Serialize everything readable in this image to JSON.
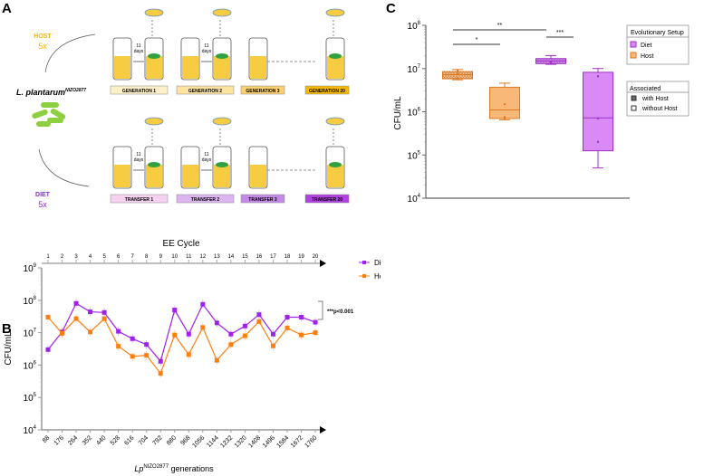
{
  "panelA": {
    "label": "A",
    "strain": "L. plantarum",
    "strain_sup": "NIZO2877",
    "host_label": "HOST",
    "host_count": "5x",
    "diet_label": "DIET",
    "diet_count": "5x",
    "days": [
      "11",
      "days"
    ],
    "host_steps": [
      "GENERATION 1",
      "GENERATION 2",
      "GENERATION 3",
      "GENERATION 20"
    ],
    "diet_steps": [
      "TRANSFER 1",
      "TRANSFER 2",
      "TRANSFER 3",
      "TRANSFER 20"
    ],
    "host_step_colors": [
      "#fdf0c8",
      "#fde3a0",
      "#fbd070",
      "#f5b800"
    ],
    "diet_step_colors": [
      "#f6d2f0",
      "#dcb5f0",
      "#c58ae8",
      "#b040e0"
    ]
  },
  "chart_data": [
    {
      "panel": "B",
      "type": "line",
      "title": "EE Cycle",
      "xlabel": "Lp",
      "xlabel_sup": "NIZO2877",
      "xlabel_suffix": "generations",
      "ylabel": "CFU/mL",
      "yscale": "log",
      "ylim": [
        10000,
        1000000000
      ],
      "yticks": [
        "10",
        "10",
        "10",
        "10",
        "10",
        "10"
      ],
      "ytick_exp": [
        "9",
        "8",
        "7",
        "6",
        "5",
        "4"
      ],
      "cycles": [
        "1",
        "2",
        "3",
        "4",
        "5",
        "6",
        "7",
        "8",
        "9",
        "10",
        "11",
        "12",
        "13",
        "14",
        "15",
        "16",
        "17",
        "18",
        "19",
        "20"
      ],
      "generations": [
        "88",
        "176",
        "264",
        "352",
        "440",
        "528",
        "616",
        "704",
        "792",
        "880",
        "968",
        "1056",
        "1144",
        "1232",
        "1320",
        "1408",
        "1496",
        "1584",
        "1672",
        "1760"
      ],
      "series": [
        {
          "name": "Diet",
          "color": "#a020f0",
          "values": [
            3000000.0,
            10500000.0,
            80000000.0,
            44000000.0,
            42000000.0,
            11000000.0,
            6500000.0,
            4300000.0,
            1300000.0,
            50000000.0,
            9000000.0,
            75000000.0,
            20000000.0,
            9000000.0,
            16000000.0,
            36000000.0,
            9000000.0,
            30000000.0,
            30000000.0,
            21000000.0
          ]
        },
        {
          "name": "Host",
          "color": "#ff7f0e",
          "values": [
            30000000.0,
            9500000.0,
            27000000.0,
            10500000.0,
            27000000.0,
            3800000.0,
            1850000.0,
            2000000.0,
            550000.0,
            8500000.0,
            2100000.0,
            14500000.0,
            1400000.0,
            4300000.0,
            8000000.0,
            22000000.0,
            3900000.0,
            14000000.0,
            8500000.0,
            10000000.0
          ]
        }
      ],
      "annotation": "***p<0.001",
      "legend": "top-right"
    },
    {
      "panel": "C",
      "type": "box",
      "ylabel": "CFU/mL",
      "yscale": "log",
      "ylim": [
        10000,
        100000000
      ],
      "ytick_exp": [
        "8",
        "7",
        "6",
        "5",
        "4"
      ],
      "boxes": [
        {
          "setup": "Host",
          "associated": "with Host",
          "min": 5500000.0,
          "q1": 5800000.0,
          "median": 7200000.0,
          "q3": 8500000.0,
          "max": 9500000.0,
          "points": [
            9000000.0,
            7600000.0,
            6000000.0
          ]
        },
        {
          "setup": "Host",
          "associated": "without Host",
          "min": 650000.0,
          "q1": 700000.0,
          "median": 1100000.0,
          "q3": 3700000.0,
          "max": 4600000.0,
          "points": [
            1500000.0,
            750000.0,
            700000.0
          ]
        },
        {
          "setup": "Diet",
          "associated": "with Host",
          "min": 12500000.0,
          "q1": 13000000.0,
          "median": 15000000.0,
          "q3": 17000000.0,
          "max": 20000000.0,
          "points": [
            14000000.0
          ]
        },
        {
          "setup": "Diet",
          "associated": "without Host",
          "min": 50000.0,
          "q1": 125000.0,
          "median": 720000.0,
          "q3": 8200000.0,
          "max": 10000000.0,
          "points": [
            6600000.0,
            700000.0,
            200000.0
          ]
        }
      ],
      "significance": [
        {
          "from": 1,
          "to": 3,
          "label": "**"
        },
        {
          "from": 1,
          "to": 2,
          "label": "*"
        },
        {
          "from": 3,
          "to": 3.5,
          "label": "***"
        }
      ],
      "colors": {
        "Diet": "#d98af5",
        "Host": "#f8b878",
        "Diet_edge": "#a030c8",
        "Host_edge": "#e07820"
      },
      "legend1_title": "Evolutionary Setup",
      "legend1_items": [
        "Diet",
        "Host"
      ],
      "legend2_title": "Associated",
      "legend2_items": [
        "with Host",
        "without Host"
      ]
    }
  ],
  "panel_labels": {
    "b": "B",
    "c": "C"
  }
}
